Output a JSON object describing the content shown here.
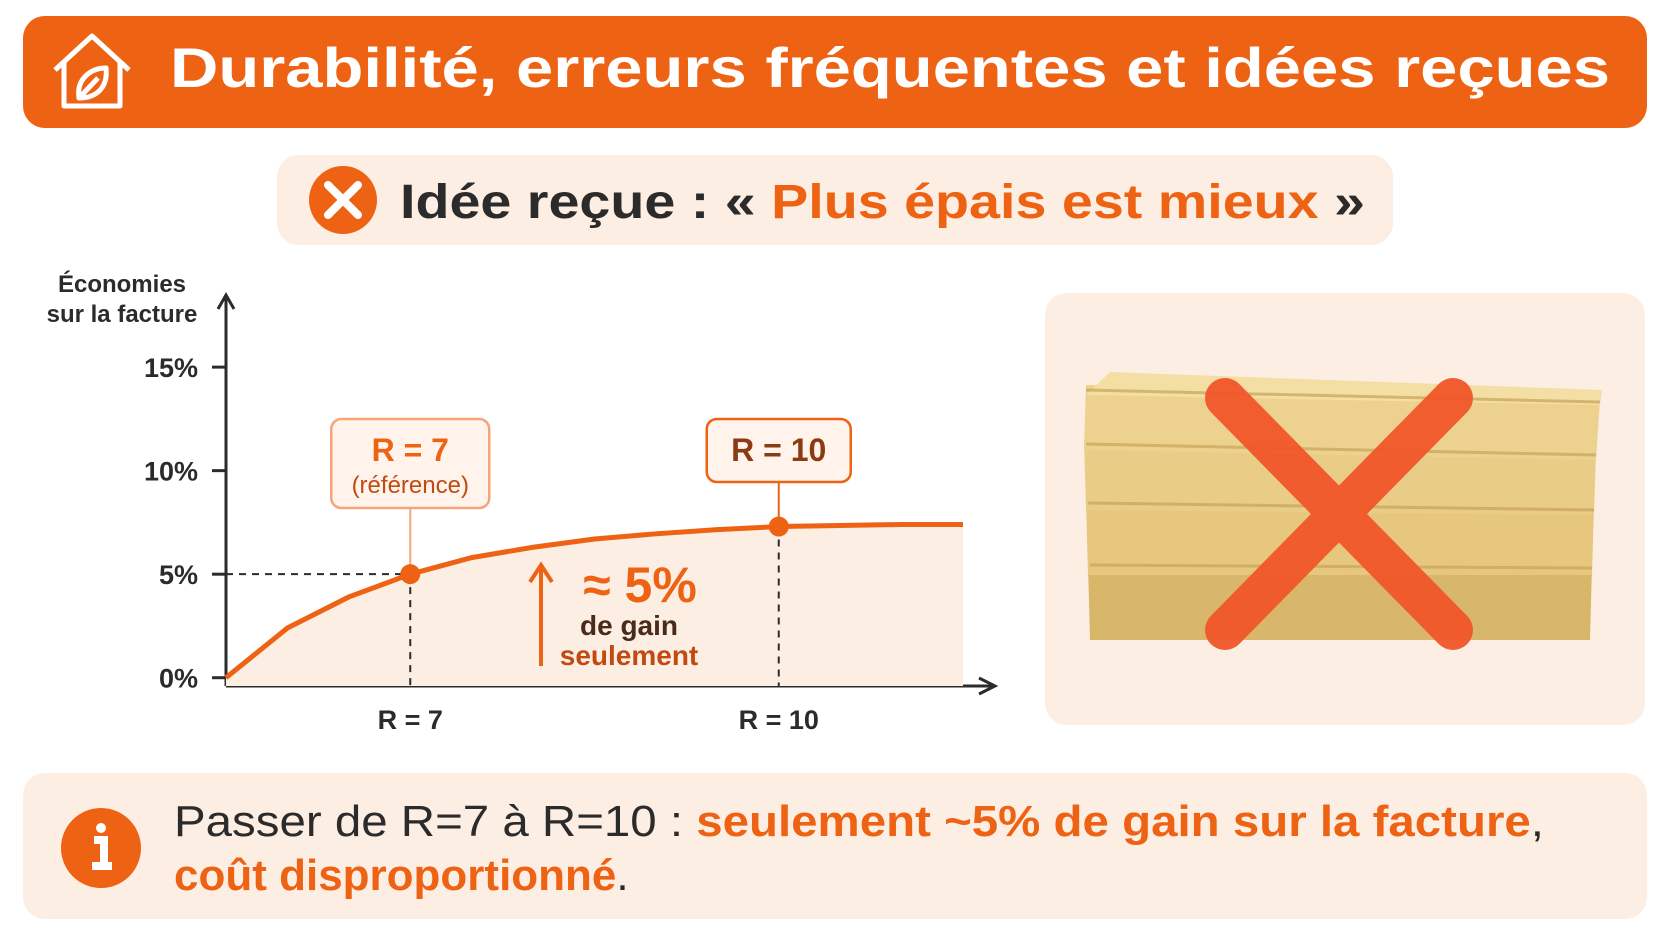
{
  "header": {
    "title": "Durabilité, erreurs fréquentes et idées reçues"
  },
  "subtitle": {
    "prefix": "Idée reçue : « ",
    "highlight": "Plus épais est mieux",
    "suffix": " »"
  },
  "chart_data": {
    "type": "line",
    "ylabel": [
      "Économies",
      "sur la facture"
    ],
    "x": [
      5.5,
      6,
      6.5,
      7,
      7.5,
      8,
      8.5,
      9,
      9.5,
      10,
      10.5,
      11,
      11.5
    ],
    "values": [
      0,
      2.4,
      3.9,
      5,
      5.8,
      6.3,
      6.7,
      6.95,
      7.15,
      7.3,
      7.35,
      7.4,
      7.4
    ],
    "color": "#ee6214",
    "xlim": [
      5.5,
      11.5
    ],
    "ylim": [
      -0.4,
      18
    ],
    "xticks": [
      {
        "value": 7,
        "label": "R = 7"
      },
      {
        "value": 10,
        "label": "R = 10"
      }
    ],
    "yticks": [
      {
        "value": 0,
        "label": "0%"
      },
      {
        "value": 5,
        "label": "5%"
      },
      {
        "value": 10,
        "label": "10%"
      },
      {
        "value": 15,
        "label": "15%"
      }
    ],
    "highlights": [
      {
        "x": 7,
        "value": 5,
        "label": "R = 7",
        "sublabel": "(référence)"
      },
      {
        "x": 10,
        "value": 7.3,
        "label": "R = 10"
      }
    ],
    "annotation": {
      "value": "≈ 5%",
      "lines": [
        "de gain",
        "seulement"
      ]
    }
  },
  "footer": {
    "line1": [
      "Passer de R=7 à R=10 : ",
      "seulement ~5% de gain sur la facture",
      ","
    ],
    "line2": [
      "coût disproportionné",
      "."
    ]
  }
}
